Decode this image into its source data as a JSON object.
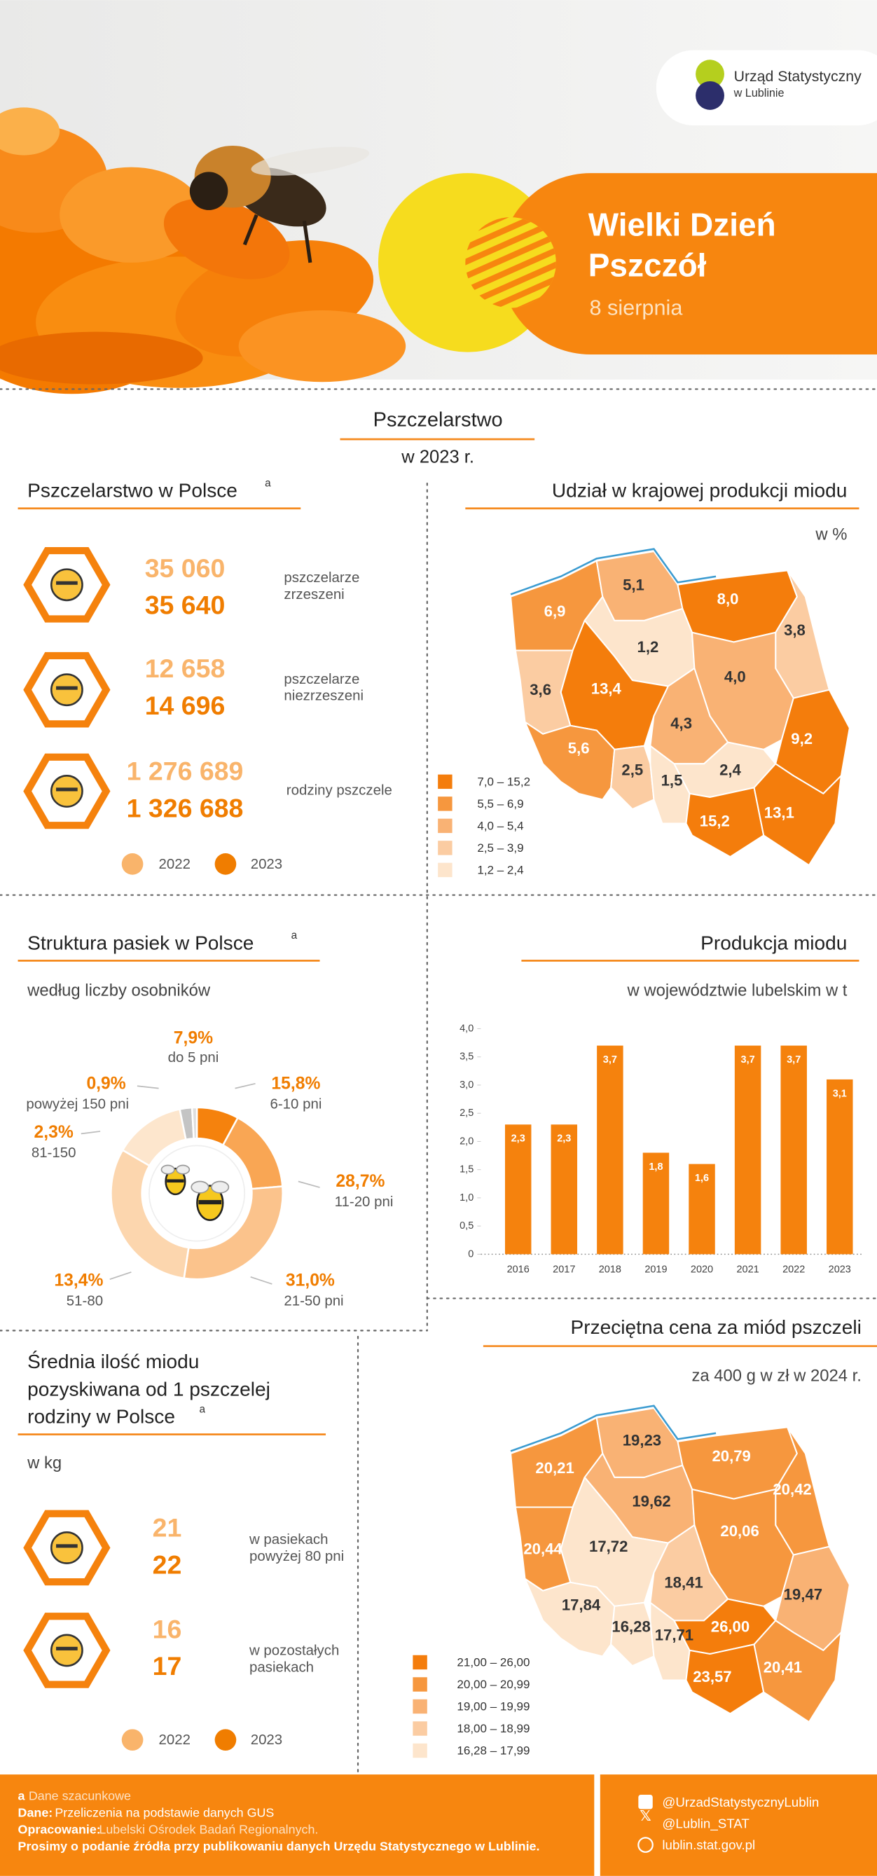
{
  "header": {
    "logo": [
      "Urząd Statystyczny",
      "w Lublinie"
    ],
    "title": [
      "Wielki Dzień",
      "Pszczół"
    ],
    "date": "8 sierpnia"
  },
  "section": {
    "title": "Pszczelarstwo",
    "subtitle": "w 2023 r."
  },
  "beekeeping": {
    "title": "Pszczelarstwo w Polsce",
    "note": "a",
    "items": [
      {
        "v2022": "35 060",
        "v2023": "35 640",
        "label": [
          "pszczelarze",
          "zrzeszeni"
        ]
      },
      {
        "v2022": "12 658",
        "v2023": "14 696",
        "label": [
          "pszczelarze",
          "niezrzeszeni"
        ]
      },
      {
        "v2022": "1 276 689",
        "v2023": "1 326 688",
        "label": [
          "rodziny pszczele"
        ]
      }
    ],
    "legend": [
      "2022",
      "2023"
    ]
  },
  "honey_yield": {
    "title": [
      "Średnia ilość miodu",
      "pozyskiwana od 1 pszczelej",
      "rodziny w Polsce"
    ],
    "note": "a",
    "unit": "w kg",
    "items": [
      {
        "v2022": "21",
        "v2023": "22",
        "label": [
          "w pasiekach",
          "powyżej 80 pni"
        ]
      },
      {
        "v2022": "16",
        "v2023": "17",
        "label": [
          "w pozostałych",
          "pasiekach"
        ]
      }
    ],
    "legend": [
      "2022",
      "2023"
    ]
  },
  "chart_data": [
    {
      "type": "choropleth",
      "title": "Udział w krajowej produkcji miodu",
      "subtitle": "w %",
      "values": [
        6.9,
        5.1,
        8.0,
        3.8,
        1.2,
        13.4,
        3.6,
        4.0,
        4.3,
        9.2,
        5.6,
        2.5,
        1.5,
        2.4,
        15.2,
        13.1
      ],
      "value_labels": [
        "6,9",
        "5,1",
        "8,0",
        "3,8",
        "1,2",
        "13,4",
        "3,6",
        "4,0",
        "4,3",
        "9,2",
        "5,6",
        "2,5",
        "1,5",
        "2,4",
        "15,2",
        "13,1"
      ],
      "legend": [
        {
          "label": "7,0 – 15,2",
          "min": 7.0,
          "max": 15.2,
          "color": "#f47d0c"
        },
        {
          "label": "5,5 – 6,9",
          "min": 5.5,
          "max": 6.9,
          "color": "#f6973e"
        },
        {
          "label": "4,0 – 5,4",
          "min": 4.0,
          "max": 5.4,
          "color": "#f9b274"
        },
        {
          "label": "2,5 – 3,9",
          "min": 2.5,
          "max": 3.9,
          "color": "#fbcca2"
        },
        {
          "label": "1,2 – 2,4",
          "min": 1.2,
          "max": 2.4,
          "color": "#fde5cc"
        }
      ]
    },
    {
      "type": "donut",
      "title": "Struktura pasiek w Polsce",
      "note": "a",
      "subtitle": "według liczby osobników",
      "categories": [
        "do 5 pni",
        "6-10 pni",
        "11-20 pni",
        "21-50 pni",
        "51-80",
        "81-150",
        "powyżej 150 pni"
      ],
      "values": [
        7.9,
        15.8,
        28.7,
        31.0,
        13.4,
        2.3,
        0.9
      ],
      "value_labels": [
        "7,9%",
        "15,8%",
        "28,7%",
        "31,0%",
        "13,4%",
        "2,3%",
        "0,9%"
      ],
      "colors": [
        "#f5820d",
        "#f9a654",
        "#fbc38c",
        "#fcd6ae",
        "#fde6cd",
        "#c4c4c4",
        "#dedede"
      ]
    },
    {
      "type": "bar",
      "title": "Produkcja miodu",
      "subtitle": "w województwie lubelskim w t",
      "categories": [
        "2016",
        "2017",
        "2018",
        "2019",
        "2020",
        "2021",
        "2022",
        "2023"
      ],
      "values": [
        2.3,
        2.3,
        3.7,
        1.8,
        1.6,
        3.7,
        3.7,
        3.1
      ],
      "value_labels": [
        "2,3",
        "2,3",
        "3,7",
        "1,8",
        "1,6",
        "3,7",
        "3,7",
        "3,1"
      ],
      "color": "#f5820d",
      "ylim": [
        0,
        4
      ],
      "yticks": [
        0,
        {
          "value": 0.5,
          "label": "0,5"
        },
        {
          "value": 1,
          "label": "1,0"
        },
        {
          "value": 1.5,
          "label": "1,5"
        },
        {
          "value": 2,
          "label": "2,0"
        },
        {
          "value": 2.5,
          "label": "2,5"
        },
        {
          "value": 3,
          "label": "3,0"
        },
        {
          "value": 3.5,
          "label": "3,5"
        },
        {
          "value": 4,
          "label": "4,0"
        }
      ]
    },
    {
      "type": "choropleth",
      "title": "Przeciętna cena za miód pszczeli",
      "subtitle": "za 400 g w zł w 2024 r.",
      "values": [
        20.21,
        19.23,
        20.79,
        20.42,
        19.62,
        17.72,
        20.44,
        20.06,
        18.41,
        19.47,
        17.84,
        16.28,
        17.71,
        26.0,
        23.57,
        20.41
      ],
      "value_labels": [
        "20,21",
        "19,23",
        "20,79",
        "20,42",
        "19,62",
        "17,72",
        "20,44",
        "20,06",
        "18,41",
        "19,47",
        "17,84",
        "16,28",
        "17,71",
        "26,00",
        "23,57",
        "20,41"
      ],
      "legend": [
        {
          "label": "21,00 – 26,00",
          "min": 21.0,
          "max": 26.0,
          "color": "#f47d0c"
        },
        {
          "label": "20,00 – 20,99",
          "min": 20.0,
          "max": 20.99,
          "color": "#f6973e"
        },
        {
          "label": "19,00 – 19,99",
          "min": 19.0,
          "max": 19.99,
          "color": "#f9b274"
        },
        {
          "label": "18,00 – 18,99",
          "min": 18.0,
          "max": 18.99,
          "color": "#fbcca2"
        },
        {
          "label": "16,28 – 17,99",
          "min": 16.28,
          "max": 17.99,
          "color": "#fde5cc"
        }
      ]
    }
  ],
  "footer": {
    "note_mark": "a",
    "note": "Dane szacunkowe",
    "source_label": "Dane:",
    "source": "Przeliczenia na podstawie danych GUS",
    "author_label": "Opracowanie:",
    "author": "Lubelski Ośrodek Badań Regionalnych.",
    "request": "Prosimy o podanie źródła przy publikowaniu danych Urzędu Statystycznego w Lublinie.",
    "social": [
      "@UrzadStatystycznyLublin",
      "@Lublin_STAT",
      "lublin.stat.gov.pl"
    ]
  }
}
